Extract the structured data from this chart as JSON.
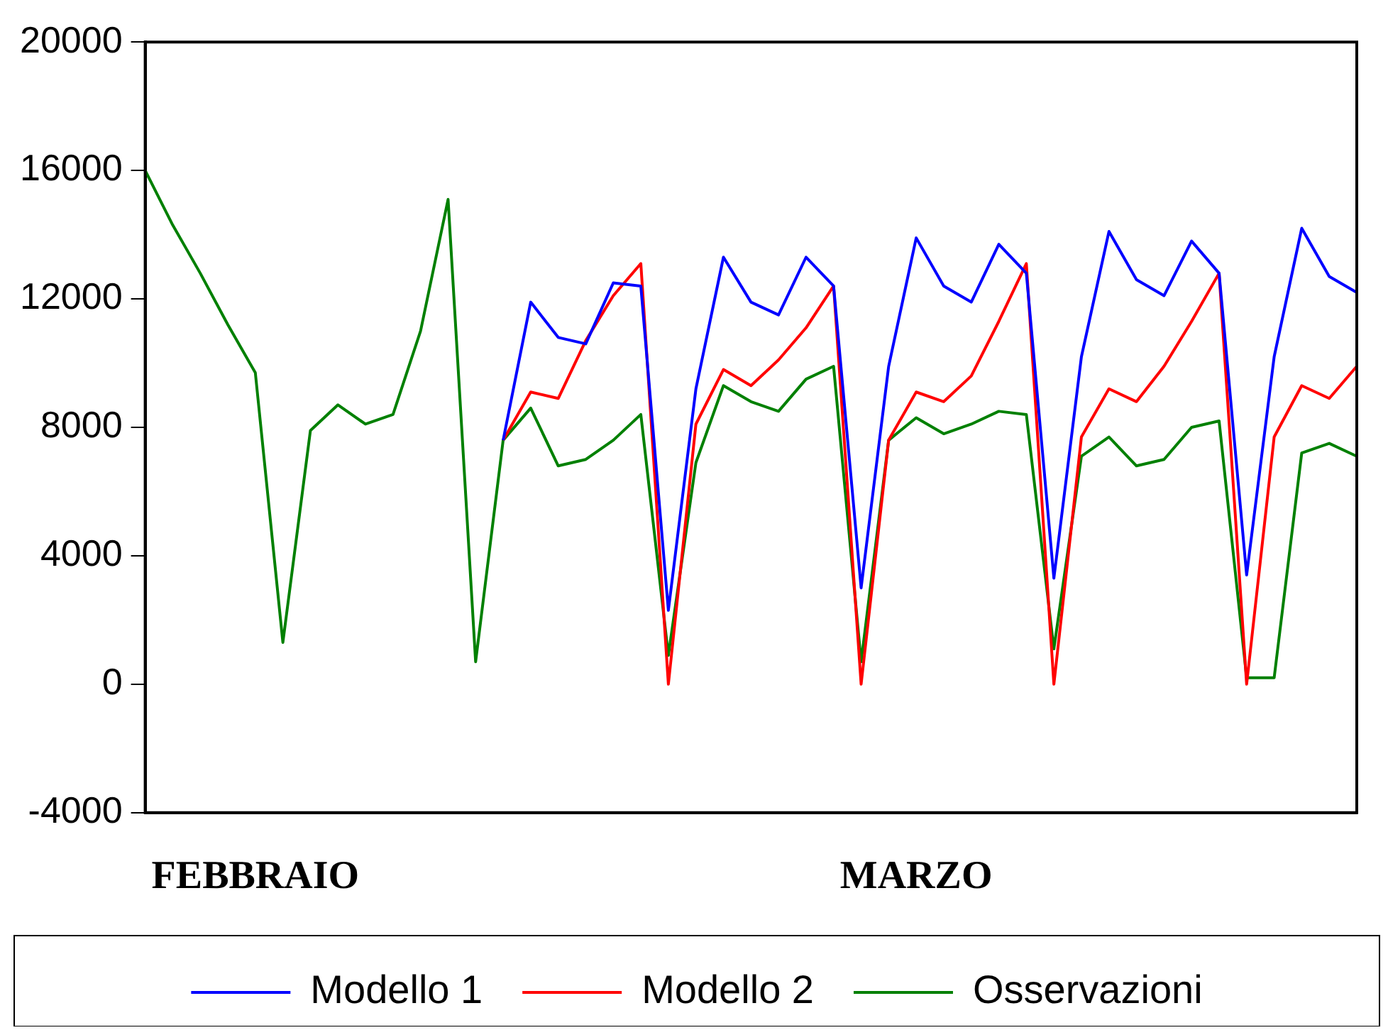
{
  "chart_data": {
    "type": "line",
    "categories": [
      null,
      null,
      null,
      null,
      "FEBBRAIO",
      null,
      null,
      null,
      null,
      null,
      null,
      null,
      null,
      null,
      null,
      null,
      null,
      null,
      null,
      null,
      null,
      null,
      null,
      null,
      null,
      null,
      null,
      null,
      "MARZO",
      null,
      null,
      null,
      null,
      null,
      null,
      null,
      null,
      null,
      null,
      null,
      null,
      null,
      null,
      null,
      null
    ],
    "series": [
      {
        "name": "Modello 1",
        "color": "#0000ff",
        "values": [
          null,
          null,
          null,
          null,
          null,
          null,
          null,
          null,
          null,
          null,
          null,
          null,
          null,
          7600,
          11900,
          10800,
          10600,
          12500,
          12400,
          2300,
          9200,
          13300,
          11900,
          11500,
          13300,
          12400,
          3000,
          9900,
          13900,
          12400,
          11900,
          13700,
          12800,
          3300,
          10200,
          14100,
          12600,
          12100,
          13800,
          12800,
          3400,
          10200,
          14200,
          12700,
          12200
        ]
      },
      {
        "name": "Modello 2",
        "color": "#ff0000",
        "values": [
          null,
          null,
          null,
          null,
          null,
          null,
          null,
          null,
          null,
          null,
          null,
          null,
          null,
          7600,
          9100,
          8900,
          10700,
          12100,
          13100,
          0,
          8100,
          9800,
          9300,
          10100,
          11100,
          12400,
          0,
          7600,
          9100,
          8800,
          9600,
          11300,
          13100,
          0,
          7700,
          9200,
          8800,
          9900,
          11300,
          12800,
          0,
          7700,
          9300,
          8900,
          9900
        ]
      },
      {
        "name": "Osservazioni",
        "color": "#008000",
        "values": [
          16000,
          14300,
          12800,
          11200,
          9700,
          1300,
          7900,
          8700,
          8100,
          8400,
          11000,
          15100,
          700,
          7600,
          8600,
          6800,
          7000,
          7600,
          8400,
          900,
          6900,
          9300,
          8800,
          8500,
          9500,
          9900,
          700,
          7600,
          8300,
          7800,
          8100,
          8500,
          8400,
          1100,
          7100,
          7700,
          6800,
          7000,
          8000,
          8200,
          200,
          200,
          7200,
          7500,
          7100
        ]
      }
    ],
    "ylim": [
      -4000,
      20000
    ],
    "yticks": [
      -4000,
      0,
      4000,
      8000,
      12000,
      16000,
      20000
    ],
    "grid": false,
    "legend": "bottom",
    "marker": "none",
    "line_style": "solid"
  }
}
